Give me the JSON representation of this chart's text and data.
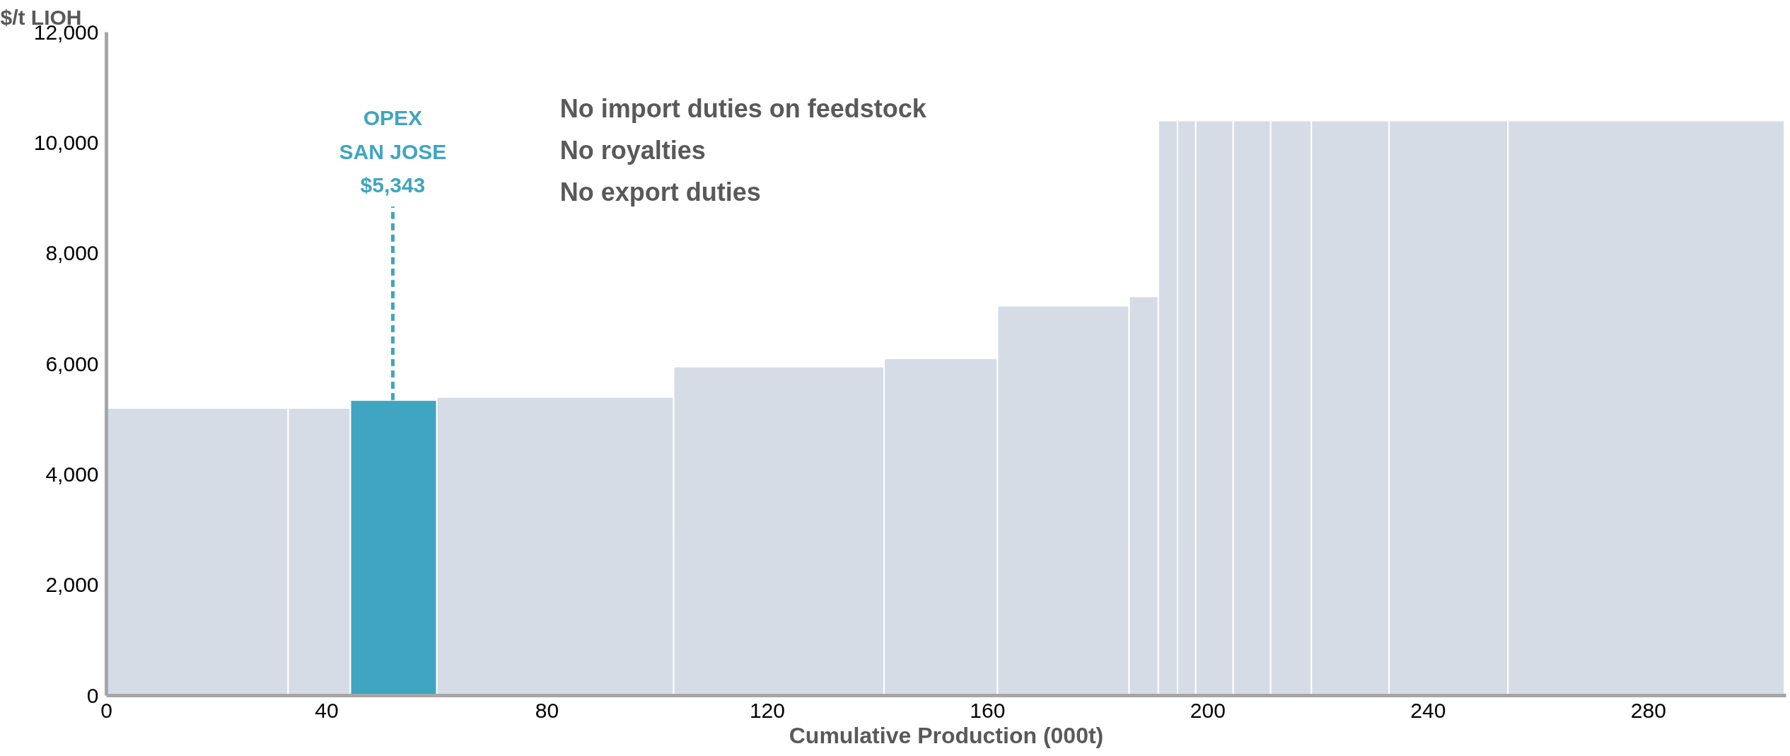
{
  "chart_data": {
    "type": "histogram",
    "ylabel": "$/t LIOH",
    "xlabel": "Cumulative Production (000t)",
    "bins": [
      0,
      33,
      44.3,
      60,
      103,
      141.2,
      161.8,
      185.7,
      191,
      194.5,
      197.8,
      204.6,
      211.4,
      218.8,
      232.9,
      254.5,
      304.7
    ],
    "values": [
      5200,
      5200,
      5343,
      5400,
      5950,
      6100,
      7050,
      7220,
      10400,
      10400,
      10400,
      10400,
      10400,
      10400,
      10400,
      10400
    ],
    "colors": [
      "#d5dce6",
      "#d5dce6",
      "#3fa5c0",
      "#d5dce6",
      "#d5dce6",
      "#d5dce6",
      "#d5dce6",
      "#d5dce6",
      "#d5dce6",
      "#d5dce6",
      "#d5dce6",
      "#d5dce6",
      "#d5dce6",
      "#d5dce6",
      "#d5dce6",
      "#d5dce6"
    ],
    "xlim": [
      0,
      305
    ],
    "ylim": [
      0,
      12000
    ],
    "xticks": [
      0,
      40,
      80,
      120,
      160,
      200,
      240,
      280
    ],
    "yticks": [
      {
        "value": 0,
        "label": "0"
      },
      {
        "value": 2000,
        "label": "2,000"
      },
      {
        "value": 4000,
        "label": "4,000"
      },
      {
        "value": 6000,
        "label": "6,000"
      },
      {
        "value": 8000,
        "label": "8,000"
      },
      {
        "value": 10000,
        "label": "10,000"
      },
      {
        "value": 12000,
        "label": "12,000"
      }
    ],
    "grid": false,
    "annotations": [
      {
        "text": "OPEX\nSAN JOSE\n$5,343",
        "x": 52,
        "y": 5343
      },
      "No import duties on feedstock",
      "No royalties",
      "No export duties"
    ]
  }
}
